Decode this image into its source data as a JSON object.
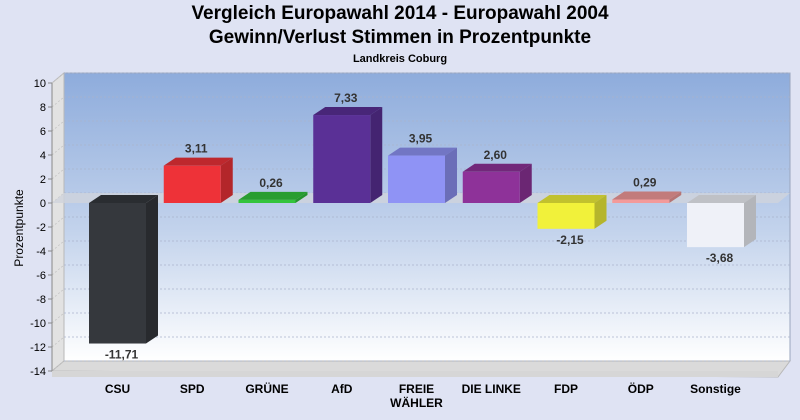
{
  "chart_data": {
    "type": "bar",
    "title": "Vergleich Europawahl 2014 - Europawahl 2004",
    "subtitle": "Gewinn/Verlust Stimmen in Prozentpunkte",
    "subsubtitle": "Landkreis Coburg",
    "xlabel": "",
    "ylabel": "Prozentpunkte",
    "ylim": [
      -14,
      10
    ],
    "yticks": [
      10,
      8,
      6,
      4,
      2,
      0,
      -2,
      -4,
      -6,
      -8,
      -10,
      -12,
      -14
    ],
    "grid": true,
    "legend": "none",
    "categories": [
      "CSU",
      "SPD",
      "GRÜNE",
      "AfD",
      "FREIE WÄHLER",
      "DIE LINKE",
      "FDP",
      "ÖDP",
      "Sonstige"
    ],
    "category_lines": [
      [
        "CSU"
      ],
      [
        "SPD"
      ],
      [
        "GRÜNE"
      ],
      [
        "AfD"
      ],
      [
        "FREIE",
        "WÄHLER"
      ],
      [
        "DIE LINKE"
      ],
      [
        "FDP"
      ],
      [
        "ÖDP"
      ],
      [
        "Sonstige"
      ]
    ],
    "values": [
      -11.71,
      3.11,
      0.26,
      7.33,
      3.95,
      2.6,
      -2.15,
      0.29,
      -3.68
    ],
    "value_labels": [
      "-11,71",
      "3,11",
      "0,26",
      "7,33",
      "3,95",
      "2,60",
      "-2,15",
      "0,29",
      "-3,68"
    ],
    "colors": [
      "#35383d",
      "#ee3238",
      "#33c43c",
      "#5a3096",
      "#8f93f5",
      "#8e3299",
      "#f1f13a",
      "#f39a9a",
      "#eff1f8"
    ]
  }
}
